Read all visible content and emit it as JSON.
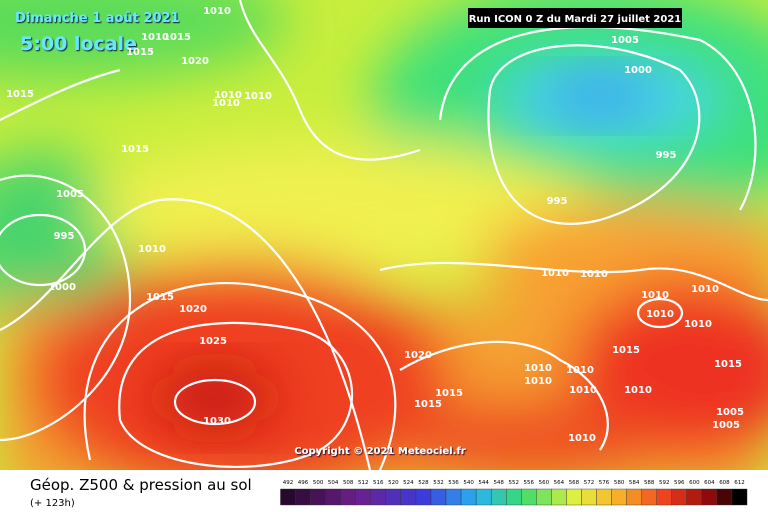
{
  "header": {
    "date": "Dimanche 1 août 2021",
    "time": "5:00 locale",
    "run": "Run ICON 0 Z du Mardi 27 juillet 2021"
  },
  "isobars": [
    1010,
    1010,
    1015,
    1015,
    1020,
    1015,
    1010,
    1010,
    1010,
    1015,
    1005,
    995,
    1010,
    1000,
    1015,
    1020,
    1025,
    1030,
    1020,
    1015,
    1015,
    1005,
    1000,
    995,
    995,
    1010,
    1010,
    1010,
    1010,
    1010,
    1010,
    1015,
    1010,
    1010,
    1010,
    1010,
    1010,
    1015,
    1005,
    1005,
    1010
  ],
  "copyright": "Copyright © 2021 Meteociel.fr",
  "legend": {
    "title": "Géop. Z500 & pression au sol",
    "lead": "(+ 123h)",
    "scale": [
      492,
      496,
      500,
      504,
      508,
      512,
      516,
      520,
      524,
      528,
      532,
      536,
      540,
      544,
      548,
      552,
      556,
      560,
      564,
      568,
      572,
      576,
      580,
      584,
      588,
      592,
      596,
      600,
      604,
      608,
      612
    ]
  }
}
